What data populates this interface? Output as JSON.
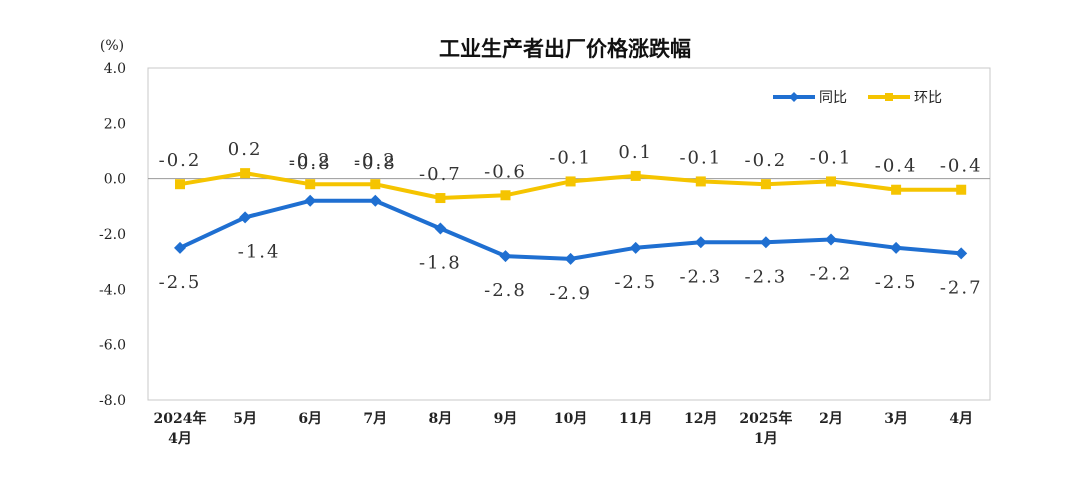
{
  "chart_data": {
    "type": "line",
    "title": "工业生产者出厂价格涨跌幅",
    "unit": "(%)",
    "categories": [
      [
        "2024年",
        "4月"
      ],
      [
        "5月"
      ],
      [
        "6月"
      ],
      [
        "7月"
      ],
      [
        "8月"
      ],
      [
        "9月"
      ],
      [
        "10月"
      ],
      [
        "11月"
      ],
      [
        "12月"
      ],
      [
        "2025年",
        "1月"
      ],
      [
        "2月"
      ],
      [
        "3月"
      ],
      [
        "4月"
      ]
    ],
    "ylim": [
      -8.0,
      4.0
    ],
    "yticks": [
      "4.0",
      "2.0",
      "0.0",
      "-2.0",
      "-4.0",
      "-6.0",
      "-8.0"
    ],
    "grid": false,
    "legend_position": "top-right",
    "series": [
      {
        "name": "同比",
        "color": "#1f6fd1",
        "marker": "diamond",
        "values": [
          -2.5,
          -1.4,
          -0.8,
          -0.8,
          -1.8,
          -2.8,
          -2.9,
          -2.5,
          -2.3,
          -2.3,
          -2.2,
          -2.5,
          -2.7
        ],
        "labels": [
          "-2.5",
          "-1.4",
          "-0.8",
          "-0.8",
          "-1.8",
          "-2.8",
          "-2.9",
          "-2.5",
          "-2.3",
          "-2.3",
          "-2.2",
          "-2.5",
          "-2.7"
        ]
      },
      {
        "name": "环比",
        "color": "#f5c400",
        "marker": "square",
        "values": [
          -0.2,
          0.2,
          -0.2,
          -0.2,
          -0.7,
          -0.6,
          -0.1,
          0.1,
          -0.1,
          -0.2,
          -0.1,
          -0.4,
          -0.4
        ],
        "labels": [
          "-0.2",
          "0.2",
          "-0.2",
          "-0.2",
          "-0.7",
          "-0.6",
          "-0.1",
          "0.1",
          "-0.1",
          "-0.2",
          "-0.1",
          "-0.4",
          "-0.4"
        ]
      }
    ]
  }
}
